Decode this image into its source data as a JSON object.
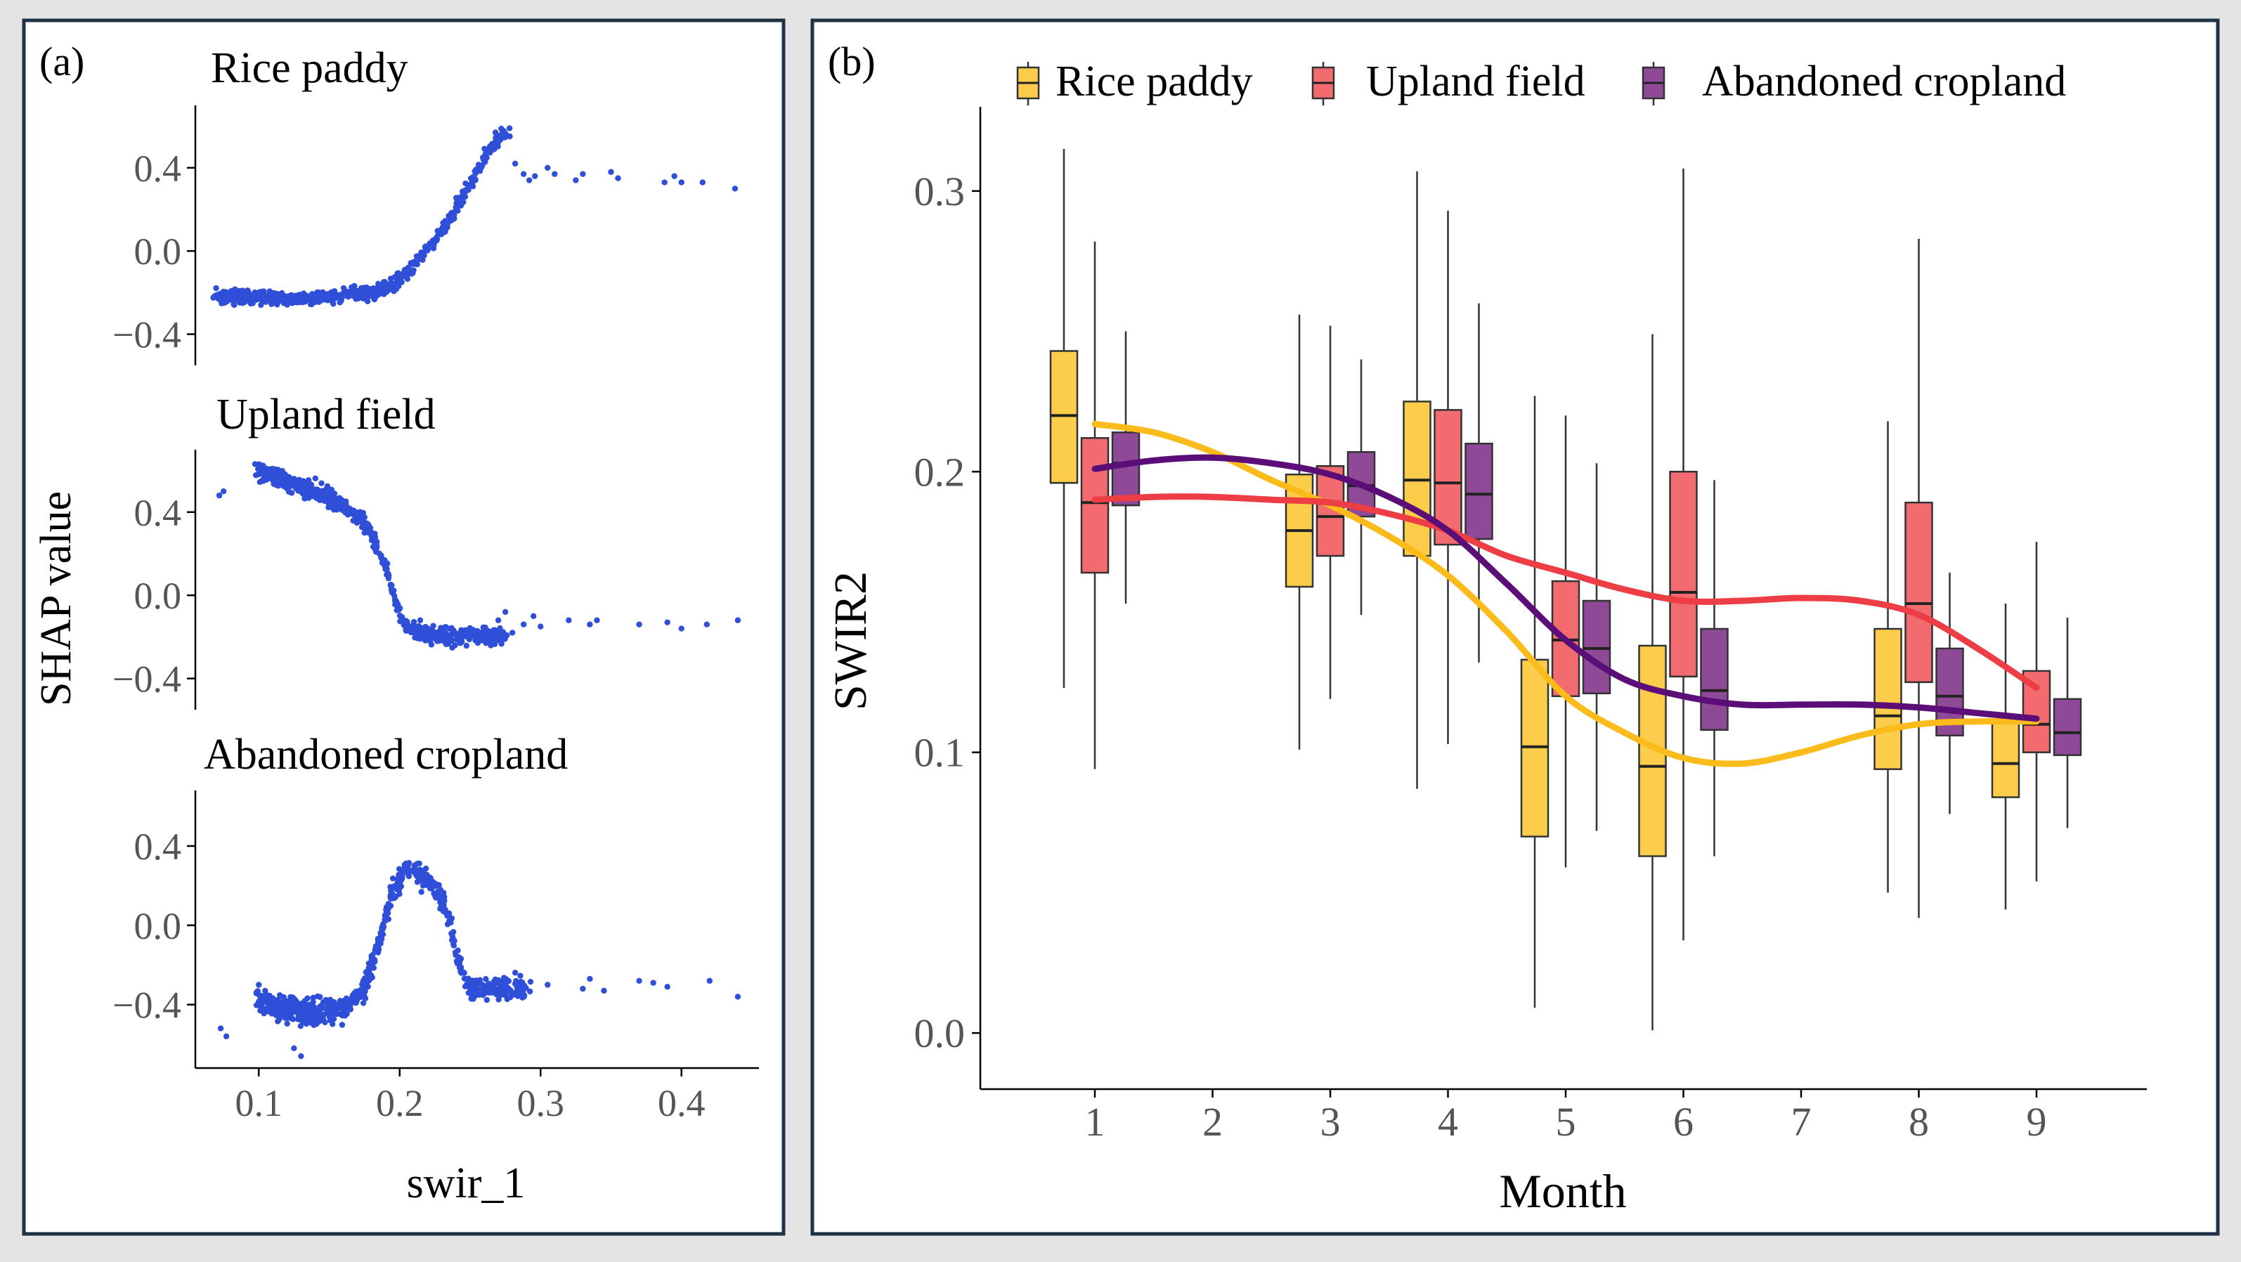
{
  "chart_data": [
    {
      "panel_label": "(a)",
      "type": "scatter",
      "xlabel": "swir_1",
      "ylabel": "SHAP value",
      "xlim": [
        0.055,
        0.455
      ],
      "x_ticks": [
        0.1,
        0.2,
        0.3,
        0.4
      ],
      "x_tick_labels": [
        "0.1",
        "0.2",
        "0.3",
        "0.4"
      ],
      "point_color": "#2f4fd8",
      "subplots": [
        {
          "title": "Rice paddy",
          "ylim": [
            -0.55,
            0.7
          ],
          "y_ticks": [
            0.4,
            0.0,
            -0.4
          ],
          "y_tick_labels": [
            "0.4",
            "0.0",
            "−0.4"
          ],
          "curve": [
            [
              0.07,
              -0.22
            ],
            [
              0.1,
              -0.22
            ],
            [
              0.13,
              -0.23
            ],
            [
              0.16,
              -0.21
            ],
            [
              0.18,
              -0.2
            ],
            [
              0.195,
              -0.17
            ],
            [
              0.205,
              -0.1
            ],
            [
              0.215,
              -0.02
            ],
            [
              0.225,
              0.05
            ],
            [
              0.235,
              0.15
            ],
            [
              0.245,
              0.27
            ],
            [
              0.255,
              0.38
            ],
            [
              0.265,
              0.5
            ],
            [
              0.275,
              0.56
            ]
          ],
          "spread": 0.028,
          "outliers": [
            [
              0.074,
              -0.25
            ],
            [
              0.268,
              0.57
            ],
            [
              0.278,
              0.59
            ],
            [
              0.282,
              0.42
            ],
            [
              0.288,
              0.37
            ],
            [
              0.292,
              0.34
            ],
            [
              0.296,
              0.36
            ],
            [
              0.305,
              0.4
            ],
            [
              0.31,
              0.37
            ],
            [
              0.325,
              0.34
            ],
            [
              0.33,
              0.37
            ],
            [
              0.35,
              0.38
            ],
            [
              0.355,
              0.35
            ],
            [
              0.388,
              0.33
            ],
            [
              0.395,
              0.36
            ],
            [
              0.4,
              0.33
            ],
            [
              0.415,
              0.33
            ],
            [
              0.438,
              0.3
            ]
          ]
        },
        {
          "title": "Upland field",
          "ylim": [
            -0.55,
            0.7
          ],
          "y_ticks": [
            0.4,
            0.0,
            -0.4
          ],
          "y_tick_labels": [
            "0.4",
            "0.0",
            "−0.4"
          ],
          "curve": [
            [
              0.1,
              0.6
            ],
            [
              0.12,
              0.55
            ],
            [
              0.14,
              0.5
            ],
            [
              0.16,
              0.43
            ],
            [
              0.175,
              0.35
            ],
            [
              0.185,
              0.23
            ],
            [
              0.192,
              0.1
            ],
            [
              0.198,
              -0.05
            ],
            [
              0.205,
              -0.15
            ],
            [
              0.215,
              -0.18
            ],
            [
              0.23,
              -0.2
            ],
            [
              0.25,
              -0.19
            ],
            [
              0.265,
              -0.2
            ],
            [
              0.275,
              -0.19
            ]
          ],
          "spread": 0.035,
          "outliers": [
            [
              0.072,
              0.48
            ],
            [
              0.075,
              0.5
            ],
            [
              0.1,
              0.63
            ],
            [
              0.27,
              -0.12
            ],
            [
              0.275,
              -0.08
            ],
            [
              0.28,
              -0.18
            ],
            [
              0.288,
              -0.14
            ],
            [
              0.295,
              -0.1
            ],
            [
              0.3,
              -0.15
            ],
            [
              0.32,
              -0.12
            ],
            [
              0.335,
              -0.14
            ],
            [
              0.34,
              -0.12
            ],
            [
              0.37,
              -0.14
            ],
            [
              0.39,
              -0.13
            ],
            [
              0.4,
              -0.16
            ],
            [
              0.418,
              -0.14
            ],
            [
              0.44,
              -0.12
            ]
          ]
        },
        {
          "title": "Abandoned cropland",
          "ylim": [
            -0.72,
            0.68
          ],
          "y_ticks": [
            0.4,
            0.0,
            -0.4
          ],
          "y_tick_labels": [
            "0.4",
            "0.0",
            "−0.4"
          ],
          "curve": [
            [
              0.1,
              -0.38
            ],
            [
              0.12,
              -0.42
            ],
            [
              0.14,
              -0.44
            ],
            [
              0.16,
              -0.42
            ],
            [
              0.175,
              -0.32
            ],
            [
              0.185,
              -0.1
            ],
            [
              0.195,
              0.18
            ],
            [
              0.205,
              0.28
            ],
            [
              0.215,
              0.25
            ],
            [
              0.225,
              0.2
            ],
            [
              0.235,
              0.05
            ],
            [
              0.24,
              -0.15
            ],
            [
              0.25,
              -0.32
            ],
            [
              0.27,
              -0.32
            ],
            [
              0.29,
              -0.31
            ]
          ],
          "spread": 0.05,
          "outliers": [
            [
              0.073,
              -0.52
            ],
            [
              0.077,
              -0.56
            ],
            [
              0.1,
              -0.3
            ],
            [
              0.125,
              -0.62
            ],
            [
              0.13,
              -0.66
            ],
            [
              0.305,
              -0.3
            ],
            [
              0.33,
              -0.32
            ],
            [
              0.335,
              -0.27
            ],
            [
              0.345,
              -0.33
            ],
            [
              0.37,
              -0.28
            ],
            [
              0.38,
              -0.29
            ],
            [
              0.39,
              -0.31
            ],
            [
              0.42,
              -0.28
            ],
            [
              0.44,
              -0.36
            ]
          ]
        }
      ]
    },
    {
      "panel_label": "(b)",
      "type": "box",
      "xlabel": "Month",
      "ylabel": "SWIR2",
      "ylim": [
        -0.02,
        0.33
      ],
      "x_ticks": [
        1,
        2,
        3,
        4,
        5,
        6,
        7,
        8,
        9
      ],
      "x_tick_labels": [
        "1",
        "2",
        "3",
        "4",
        "5",
        "6",
        "7",
        "8",
        "9"
      ],
      "y_ticks": [
        0.0,
        0.1,
        0.2,
        0.3
      ],
      "y_tick_labels": [
        "0.0",
        "0.1",
        "0.2",
        "0.3"
      ],
      "legend_position": "top",
      "series": [
        {
          "name": "Rice paddy",
          "box_color": "#fccd4a",
          "line_color": "#fbbb1b",
          "boxes": [
            {
              "month": 1,
              "whisker_low": 0.123,
              "q1": 0.196,
              "median": 0.22,
              "q3": 0.243,
              "whisker_high": 0.315
            },
            {
              "month": 3,
              "whisker_low": 0.101,
              "q1": 0.159,
              "median": 0.179,
              "q3": 0.199,
              "whisker_high": 0.256
            },
            {
              "month": 4,
              "whisker_low": 0.087,
              "q1": 0.17,
              "median": 0.197,
              "q3": 0.225,
              "whisker_high": 0.307
            },
            {
              "month": 5,
              "whisker_low": 0.009,
              "q1": 0.07,
              "median": 0.102,
              "q3": 0.133,
              "whisker_high": 0.227
            },
            {
              "month": 6,
              "whisker_low": 0.001,
              "q1": 0.063,
              "median": 0.095,
              "q3": 0.138,
              "whisker_high": 0.249
            },
            {
              "month": 8,
              "whisker_low": 0.05,
              "q1": 0.094,
              "median": 0.113,
              "q3": 0.144,
              "whisker_high": 0.218
            },
            {
              "month": 9,
              "whisker_low": 0.044,
              "q1": 0.084,
              "median": 0.096,
              "q3": 0.111,
              "whisker_high": 0.153
            }
          ],
          "trend": [
            [
              1,
              0.217
            ],
            [
              1.5,
              0.214
            ],
            [
              2,
              0.207
            ],
            [
              2.5,
              0.197
            ],
            [
              3,
              0.188
            ],
            [
              3.5,
              0.177
            ],
            [
              4,
              0.163
            ],
            [
              4.5,
              0.143
            ],
            [
              5,
              0.12
            ],
            [
              5.5,
              0.107
            ],
            [
              6,
              0.098
            ],
            [
              6.5,
              0.096
            ],
            [
              7,
              0.1
            ],
            [
              7.5,
              0.106
            ],
            [
              8,
              0.11
            ],
            [
              8.5,
              0.111
            ],
            [
              9,
              0.111
            ]
          ]
        },
        {
          "name": "Upland field",
          "box_color": "#f26b6e",
          "line_color": "#ed3d45",
          "boxes": [
            {
              "month": 1,
              "whisker_low": 0.094,
              "q1": 0.164,
              "median": 0.189,
              "q3": 0.212,
              "whisker_high": 0.282
            },
            {
              "month": 3,
              "whisker_low": 0.119,
              "q1": 0.17,
              "median": 0.184,
              "q3": 0.202,
              "whisker_high": 0.252
            },
            {
              "month": 4,
              "whisker_low": 0.103,
              "q1": 0.174,
              "median": 0.196,
              "q3": 0.222,
              "whisker_high": 0.293
            },
            {
              "month": 5,
              "whisker_low": 0.059,
              "q1": 0.12,
              "median": 0.14,
              "q3": 0.161,
              "whisker_high": 0.22
            },
            {
              "month": 6,
              "whisker_low": 0.033,
              "q1": 0.127,
              "median": 0.157,
              "q3": 0.2,
              "whisker_high": 0.308
            },
            {
              "month": 8,
              "whisker_low": 0.041,
              "q1": 0.125,
              "median": 0.153,
              "q3": 0.189,
              "whisker_high": 0.283
            },
            {
              "month": 9,
              "whisker_low": 0.054,
              "q1": 0.1,
              "median": 0.11,
              "q3": 0.129,
              "whisker_high": 0.175
            }
          ],
          "trend": [
            [
              1,
              0.19
            ],
            [
              1.5,
              0.191
            ],
            [
              2,
              0.191
            ],
            [
              2.5,
              0.19
            ],
            [
              3,
              0.189
            ],
            [
              3.5,
              0.185
            ],
            [
              4,
              0.179
            ],
            [
              4.5,
              0.17
            ],
            [
              5,
              0.164
            ],
            [
              5.5,
              0.158
            ],
            [
              6,
              0.154
            ],
            [
              6.5,
              0.154
            ],
            [
              7,
              0.155
            ],
            [
              7.5,
              0.154
            ],
            [
              8,
              0.149
            ],
            [
              8.5,
              0.137
            ],
            [
              9,
              0.123
            ]
          ]
        },
        {
          "name": "Abandoned cropland",
          "box_color": "#8e4a96",
          "line_color": "#5b0e78",
          "boxes": [
            {
              "month": 1,
              "whisker_low": 0.153,
              "q1": 0.188,
              "median": 0.203,
              "q3": 0.214,
              "whisker_high": 0.25
            },
            {
              "month": 3,
              "whisker_low": 0.149,
              "q1": 0.184,
              "median": 0.195,
              "q3": 0.207,
              "whisker_high": 0.24
            },
            {
              "month": 4,
              "whisker_low": 0.132,
              "q1": 0.176,
              "median": 0.192,
              "q3": 0.21,
              "whisker_high": 0.26
            },
            {
              "month": 5,
              "whisker_low": 0.072,
              "q1": 0.121,
              "median": 0.137,
              "q3": 0.154,
              "whisker_high": 0.203
            },
            {
              "month": 6,
              "whisker_low": 0.063,
              "q1": 0.108,
              "median": 0.122,
              "q3": 0.144,
              "whisker_high": 0.197
            },
            {
              "month": 8,
              "whisker_low": 0.078,
              "q1": 0.106,
              "median": 0.12,
              "q3": 0.137,
              "whisker_high": 0.164
            },
            {
              "month": 9,
              "whisker_low": 0.073,
              "q1": 0.099,
              "median": 0.107,
              "q3": 0.119,
              "whisker_high": 0.148
            }
          ],
          "trend": [
            [
              1,
              0.201
            ],
            [
              1.5,
              0.204
            ],
            [
              2,
              0.205
            ],
            [
              2.5,
              0.203
            ],
            [
              3,
              0.199
            ],
            [
              3.5,
              0.191
            ],
            [
              4,
              0.179
            ],
            [
              4.5,
              0.16
            ],
            [
              5,
              0.14
            ],
            [
              5.5,
              0.126
            ],
            [
              6,
              0.12
            ],
            [
              6.5,
              0.117
            ],
            [
              7,
              0.117
            ],
            [
              7.5,
              0.117
            ],
            [
              8,
              0.116
            ],
            [
              8.5,
              0.114
            ],
            [
              9,
              0.112
            ]
          ]
        }
      ]
    }
  ]
}
